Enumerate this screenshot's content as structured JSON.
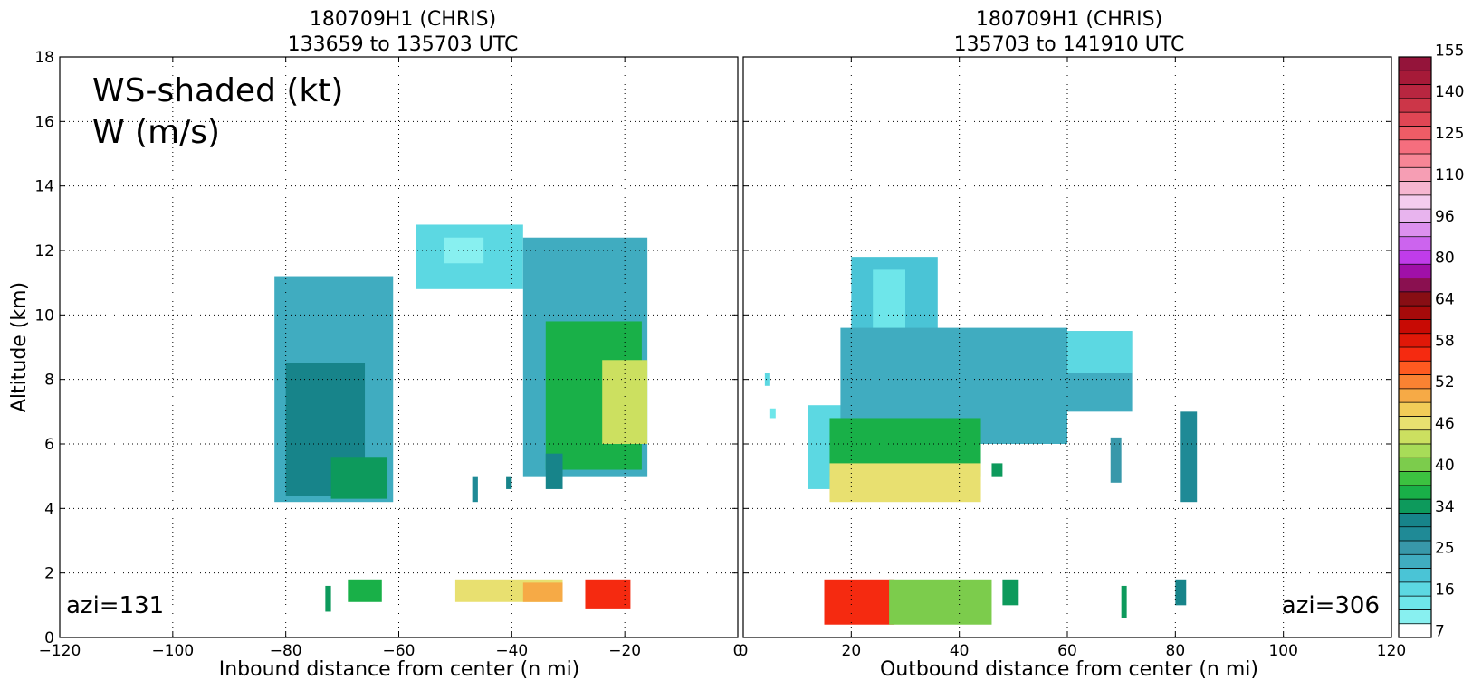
{
  "chart_data": [
    {
      "type": "heatmap",
      "title": "180709H1 (CHRIS)",
      "subtitle": "133659 to 135703 UTC",
      "xlabel": "Inbound distance from center (n mi)",
      "ylabel": "Altitude (km)",
      "xlim": [
        -120,
        0
      ],
      "ylim": [
        0,
        18
      ],
      "x_ticks": [
        -120,
        -100,
        -80,
        -60,
        -40,
        -20,
        0
      ],
      "x_tick_labels": [
        "−120",
        "−100",
        "−80",
        "−60",
        "−40",
        "−20",
        "0"
      ],
      "y_ticks": [
        0,
        2,
        4,
        6,
        8,
        10,
        12,
        14,
        16,
        18
      ],
      "grid": true,
      "legend_text": [
        "WS-shaded (kt)",
        "W (m/s)"
      ],
      "annotation": "azi=131",
      "regions": [
        {
          "x0": -82,
          "x1": -61,
          "y0": 4.2,
          "y1": 11.2,
          "ws": 22
        },
        {
          "x0": -80,
          "x1": -66,
          "y0": 4.4,
          "y1": 8.5,
          "ws": 30
        },
        {
          "x0": -72,
          "x1": -62,
          "y0": 4.3,
          "y1": 5.6,
          "ws": 34
        },
        {
          "x0": -57,
          "x1": -38,
          "y0": 10.8,
          "y1": 12.8,
          "ws": 16
        },
        {
          "x0": -52,
          "x1": -45,
          "y0": 11.6,
          "y1": 12.4,
          "ws": 9
        },
        {
          "x0": -38,
          "x1": -16,
          "y0": 5.0,
          "y1": 12.4,
          "ws": 22
        },
        {
          "x0": -34,
          "x1": -17,
          "y0": 5.2,
          "y1": 9.8,
          "ws": 36
        },
        {
          "x0": -24,
          "x1": -16,
          "y0": 6.0,
          "y1": 8.6,
          "ws": 43
        },
        {
          "x0": -34,
          "x1": -31,
          "y0": 4.6,
          "y1": 5.7,
          "ws": 32
        },
        {
          "x0": -47,
          "x1": -46,
          "y0": 4.2,
          "y1": 5.0,
          "ws": 28
        },
        {
          "x0": -41,
          "x1": -40,
          "y0": 4.6,
          "y1": 5.0,
          "ws": 30
        },
        {
          "x0": -73,
          "x1": -72,
          "y0": 0.8,
          "y1": 1.6,
          "ws": 34
        },
        {
          "x0": -69,
          "x1": -63,
          "y0": 1.1,
          "y1": 1.8,
          "ws": 35
        },
        {
          "x0": -50,
          "x1": -31,
          "y0": 1.1,
          "y1": 1.8,
          "ws": 46
        },
        {
          "x0": -38,
          "x1": -31,
          "y0": 1.1,
          "y1": 1.7,
          "ws": 50
        },
        {
          "x0": -27,
          "x1": -19,
          "y0": 0.9,
          "y1": 1.8,
          "ws": 56
        }
      ]
    },
    {
      "type": "heatmap",
      "title": "180709H1 (CHRIS)",
      "subtitle": "135703 to 141910 UTC",
      "xlabel": "Outbound distance from center (n mi)",
      "xlim": [
        0,
        120
      ],
      "ylim": [
        0,
        18
      ],
      "x_ticks": [
        0,
        20,
        40,
        60,
        80,
        100,
        120
      ],
      "x_tick_labels": [
        "0",
        "20",
        "40",
        "60",
        "80",
        "100",
        "120"
      ],
      "grid": true,
      "annotation": "azi=306",
      "regions": [
        {
          "x0": 4,
          "x1": 5,
          "y0": 7.8,
          "y1": 8.2,
          "ws": 16
        },
        {
          "x0": 5,
          "x1": 6,
          "y0": 6.8,
          "y1": 7.1,
          "ws": 12
        },
        {
          "x0": 12,
          "x1": 20,
          "y0": 4.6,
          "y1": 7.2,
          "ws": 16
        },
        {
          "x0": 20,
          "x1": 36,
          "y0": 7.0,
          "y1": 11.8,
          "ws": 18
        },
        {
          "x0": 24,
          "x1": 30,
          "y0": 9.0,
          "y1": 11.4,
          "ws": 14
        },
        {
          "x0": 18,
          "x1": 60,
          "y0": 6.0,
          "y1": 9.6,
          "ws": 22
        },
        {
          "x0": 44,
          "x1": 72,
          "y0": 7.0,
          "y1": 9.5,
          "ws": 22
        },
        {
          "x0": 60,
          "x1": 72,
          "y0": 8.2,
          "y1": 9.5,
          "ws": 16
        },
        {
          "x0": 16,
          "x1": 44,
          "y0": 5.0,
          "y1": 6.8,
          "ws": 36
        },
        {
          "x0": 16,
          "x1": 44,
          "y0": 4.2,
          "y1": 5.4,
          "ws": 46
        },
        {
          "x0": 46,
          "x1": 48,
          "y0": 5.0,
          "y1": 5.4,
          "ws": 34
        },
        {
          "x0": 68,
          "x1": 70,
          "y0": 4.8,
          "y1": 6.2,
          "ws": 24
        },
        {
          "x0": 81,
          "x1": 84,
          "y0": 4.2,
          "y1": 7.0,
          "ws": 28
        },
        {
          "x0": 15,
          "x1": 28,
          "y0": 0.4,
          "y1": 1.8,
          "ws": 55
        },
        {
          "x0": 27,
          "x1": 46,
          "y0": 0.4,
          "y1": 1.8,
          "ws": 40
        },
        {
          "x0": 48,
          "x1": 51,
          "y0": 1.0,
          "y1": 1.8,
          "ws": 34
        },
        {
          "x0": 70,
          "x1": 71,
          "y0": 0.6,
          "y1": 1.6,
          "ws": 34
        },
        {
          "x0": 80,
          "x1": 82,
          "y0": 1.0,
          "y1": 1.8,
          "ws": 32
        }
      ]
    }
  ],
  "colorbar": {
    "tick_labels": [
      "7",
      "16",
      "25",
      "34",
      "40",
      "46",
      "52",
      "58",
      "64",
      "80",
      "96",
      "110",
      "125",
      "140",
      "155"
    ],
    "colors": [
      "#ffffff",
      "#88f0f0",
      "#6ee6ea",
      "#5cd8e2",
      "#4ac4d6",
      "#40acc0",
      "#3898aa",
      "#1f8a96",
      "#17848a",
      "#0d9a5c",
      "#19b048",
      "#3cc240",
      "#7ccc4c",
      "#a8dc58",
      "#cce060",
      "#e8e070",
      "#f2cc58",
      "#f6aa46",
      "#fa8232",
      "#ff5a20",
      "#f52a10",
      "#e01808",
      "#c80a04",
      "#a60a0a",
      "#880e14",
      "#8a1050",
      "#a010a8",
      "#c03cea",
      "#cc64ee",
      "#dc90ee",
      "#e8b4ee",
      "#f4ccee",
      "#f6b6d0",
      "#f69eb4",
      "#f78696",
      "#f56e7e",
      "#ee5c66",
      "#e04654",
      "#cc3648",
      "#b82640",
      "#a61a38",
      "#94143a"
    ]
  }
}
